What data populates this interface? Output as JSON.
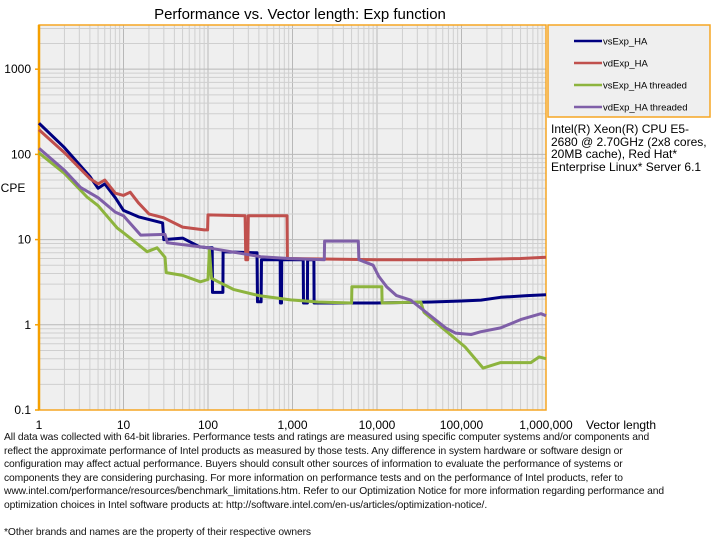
{
  "chart_data": {
    "type": "line",
    "title": "Performance vs. Vector length: Exp function",
    "xlabel": "Vector length",
    "ylabel": "CPE",
    "xscale": "log",
    "yscale": "log",
    "xlim": [
      1,
      1000000
    ],
    "ylim": [
      0.1,
      3300
    ],
    "x_ticks": [
      1,
      10,
      100,
      1000,
      10000,
      100000,
      1000000
    ],
    "x_tick_labels": [
      "1",
      "10",
      "100",
      "1,000",
      "10,000",
      "100,000",
      "1,000,000"
    ],
    "y_ticks": [
      0.1,
      1,
      10,
      100,
      1000
    ],
    "y_tick_labels": [
      "0.1",
      "1",
      "10",
      "100",
      "1000"
    ],
    "grid": true,
    "legend_position": "right",
    "series": [
      {
        "name": "vsExp_HA",
        "color": "#000080",
        "points": [
          [
            1,
            232
          ],
          [
            2,
            120
          ],
          [
            4,
            55
          ],
          [
            5,
            40
          ],
          [
            6,
            45
          ],
          [
            8,
            31
          ],
          [
            10,
            22
          ],
          [
            15,
            18.5
          ],
          [
            29,
            15.7
          ],
          [
            30,
            10
          ],
          [
            50,
            10.4
          ],
          [
            80,
            8.2
          ],
          [
            100,
            8
          ],
          [
            112,
            8
          ],
          [
            113,
            2.4
          ],
          [
            150,
            2.4
          ],
          [
            151,
            7.2
          ],
          [
            380,
            7
          ],
          [
            385,
            1.86
          ],
          [
            425,
            1.86
          ],
          [
            430,
            5.8
          ],
          [
            715,
            5.8
          ],
          [
            720,
            1.8
          ],
          [
            740,
            1.8
          ],
          [
            745,
            5.8
          ],
          [
            1340,
            5.8
          ],
          [
            1350,
            1.8
          ],
          [
            1500,
            1.8
          ],
          [
            1510,
            5.8
          ],
          [
            1790,
            5.8
          ],
          [
            1800,
            1.8
          ],
          [
            10000,
            1.8
          ],
          [
            44000,
            1.85
          ],
          [
            100000,
            1.9
          ],
          [
            170000,
            1.95
          ],
          [
            290000,
            2.1
          ],
          [
            600000,
            2.2
          ],
          [
            1000000,
            2.25
          ]
        ]
      },
      {
        "name": "vdExp_HA",
        "color": "#c0504d",
        "points": [
          [
            1,
            195
          ],
          [
            2,
            105
          ],
          [
            4,
            52
          ],
          [
            5,
            45
          ],
          [
            6,
            50
          ],
          [
            8,
            35
          ],
          [
            10,
            33
          ],
          [
            12,
            36
          ],
          [
            15,
            27
          ],
          [
            20,
            20
          ],
          [
            30,
            18
          ],
          [
            50,
            14
          ],
          [
            90,
            13
          ],
          [
            99,
            13
          ],
          [
            100,
            19.5
          ],
          [
            275,
            19
          ],
          [
            280,
            5.8
          ],
          [
            295,
            5.8
          ],
          [
            300,
            19
          ],
          [
            860,
            19
          ],
          [
            870,
            6
          ],
          [
            10000,
            5.8
          ],
          [
            100000,
            5.8
          ],
          [
            500000,
            6
          ],
          [
            1000000,
            6.2
          ]
        ]
      },
      {
        "name": "vsExp_HA threaded",
        "color": "#8db43e",
        "points": [
          [
            1,
            104
          ],
          [
            2,
            60
          ],
          [
            3.7,
            31.6
          ],
          [
            5,
            25
          ],
          [
            8.4,
            13.7
          ],
          [
            10,
            12
          ],
          [
            19,
            7.2
          ],
          [
            25,
            8
          ],
          [
            31,
            6.2
          ],
          [
            32,
            4.1
          ],
          [
            50,
            3.8
          ],
          [
            81,
            3.2
          ],
          [
            100,
            3.4
          ],
          [
            104,
            7.6
          ],
          [
            110,
            3.5
          ],
          [
            200,
            2.6
          ],
          [
            400,
            2.2
          ],
          [
            950,
            1.96
          ],
          [
            2000,
            1.85
          ],
          [
            5000,
            1.8
          ],
          [
            5050,
            2.8
          ],
          [
            11400,
            2.8
          ],
          [
            11500,
            1.8
          ],
          [
            33000,
            1.85
          ],
          [
            36000,
            1.4
          ],
          [
            57000,
            0.95
          ],
          [
            110000,
            0.55
          ],
          [
            180000,
            0.31
          ],
          [
            290000,
            0.36
          ],
          [
            660000,
            0.36
          ],
          [
            830000,
            0.42
          ],
          [
            1000000,
            0.4
          ]
        ]
      },
      {
        "name": "vdExp_HA threaded",
        "color": "#7f5fa8",
        "points": [
          [
            1,
            118
          ],
          [
            2,
            65
          ],
          [
            3.1,
            41
          ],
          [
            5,
            31
          ],
          [
            8,
            21
          ],
          [
            10,
            19
          ],
          [
            16,
            11.3
          ],
          [
            31,
            11.5
          ],
          [
            33,
            9.2
          ],
          [
            100,
            8
          ],
          [
            420,
            6.3
          ],
          [
            900,
            6
          ],
          [
            2380,
            5.8
          ],
          [
            2400,
            9.6
          ],
          [
            6000,
            9.6
          ],
          [
            6100,
            5.8
          ],
          [
            9000,
            5
          ],
          [
            10500,
            3.7
          ],
          [
            13000,
            2.8
          ],
          [
            17000,
            2.2
          ],
          [
            25000,
            1.95
          ],
          [
            44000,
            1.25
          ],
          [
            65000,
            0.92
          ],
          [
            85000,
            0.8
          ],
          [
            130000,
            0.77
          ],
          [
            170000,
            0.83
          ],
          [
            290000,
            0.92
          ],
          [
            500000,
            1.15
          ],
          [
            870000,
            1.35
          ],
          [
            1000000,
            1.28
          ]
        ]
      }
    ]
  },
  "note": [
    "Intel(R) Xeon(R) CPU E5-",
    "2680 @ 2.70GHz (2x8 cores,",
    "20MB cache), Red Hat*",
    "Enterprise Linux* Server 6.1"
  ],
  "footnote": [
    "All data was collected with 64-bit libraries. Performance tests and ratings are measured using specific computer systems and/or components and",
    "reflect the approximate performance of Intel products as measured by those tests. Any difference in system hardware or software design or",
    "configuration may affect actual performance. Buyers should consult other sources of information to evaluate the performance of systems or",
    "components they are considering purchasing. For more information on performance tests and on the performance of Intel products, refer to",
    "www.intel.com/performance/resources/benchmark_limitations.htm.  Refer to our Optimization  Notice for more information regarding performance and",
    "optimization choices in Intel software products at: http://software.intel.com/en-us/articles/optimization-notice/."
  ],
  "trademark": "*Other brands and names are the property of their respective owners"
}
